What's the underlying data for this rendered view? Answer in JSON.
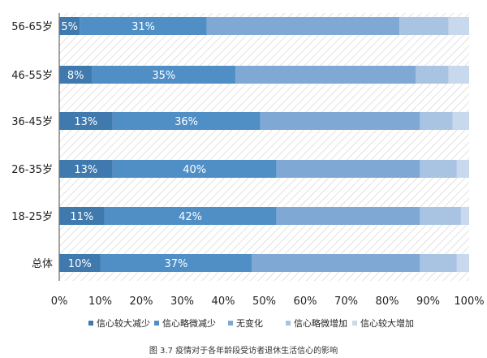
{
  "chart_data": {
    "type": "bar",
    "orientation": "horizontal-stacked",
    "categories": [
      "56-65岁",
      "46-55岁",
      "36-45岁",
      "26-35岁",
      "18-25岁",
      "总体"
    ],
    "series": [
      {
        "name": "信心较大减少",
        "color": "#3f79ad",
        "values": [
          5,
          8,
          13,
          13,
          11,
          10
        ],
        "labels": [
          "5%",
          "8%",
          "13%",
          "13%",
          "11%",
          "10%"
        ]
      },
      {
        "name": "信心略微减少",
        "color": "#4f8fc6",
        "values": [
          31,
          35,
          36,
          40,
          42,
          37
        ],
        "labels": [
          "31%",
          "35%",
          "36%",
          "40%",
          "42%",
          "37%"
        ]
      },
      {
        "name": "无变化",
        "color": "#7fa9d4",
        "values": [
          47,
          44,
          39,
          35,
          35,
          41
        ],
        "labels": [
          "",
          "",
          "",
          "",
          "",
          ""
        ]
      },
      {
        "name": "信心略微增加",
        "color": "#a9c4e3",
        "values": [
          12,
          8,
          8,
          9,
          10,
          9
        ],
        "labels": [
          "",
          "",
          "",
          "",
          "",
          ""
        ]
      },
      {
        "name": "信心较大增加",
        "color": "#c9d9ed",
        "values": [
          5,
          5,
          4,
          3,
          2,
          3
        ],
        "labels": [
          "",
          "",
          "",
          "",
          "",
          ""
        ]
      }
    ],
    "x_ticks": [
      "0%",
      "10%",
      "20%",
      "30%",
      "40%",
      "50%",
      "60%",
      "70%",
      "80%",
      "90%",
      "100%"
    ],
    "xlim": [
      0,
      100
    ],
    "legend_position": "bottom",
    "background_pattern": "diagonal-hatch"
  },
  "caption": "图 3.7 疫情对于各年龄段受访者退休生活信心的影响"
}
